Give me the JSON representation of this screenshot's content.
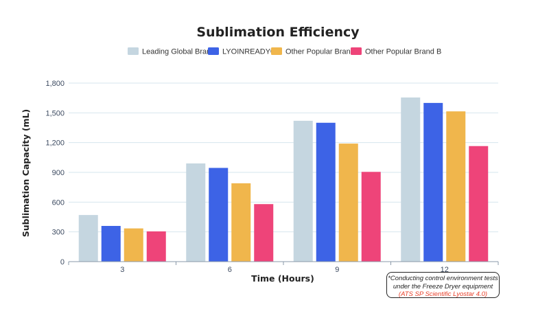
{
  "chart_data": {
    "type": "bar",
    "title": "Sublimation Efficiency",
    "xlabel": "Time (Hours)",
    "ylabel": "Sublimation Capacity (mL)",
    "categories": [
      "3",
      "6",
      "9",
      "12"
    ],
    "ylim": [
      0,
      1800
    ],
    "yticks": [
      "0",
      "300",
      "600",
      "900",
      "1,200",
      "1,500",
      "1,800"
    ],
    "ytick_values": [
      0,
      300,
      600,
      900,
      1200,
      1500,
      1800
    ],
    "grid": true,
    "legend_position": "top",
    "series": [
      {
        "name": "Leading Global Brand",
        "color": "#c5d6e0",
        "values": [
          470,
          990,
          1420,
          1655
        ]
      },
      {
        "name": "LYOINREADY®",
        "color": "#3d63e6",
        "values": [
          360,
          945,
          1400,
          1600
        ]
      },
      {
        "name": "Other Popular Brand A",
        "color": "#f0b64c",
        "values": [
          335,
          790,
          1190,
          1515
        ]
      },
      {
        "name": "Other Popular Brand B",
        "color": "#ee4479",
        "values": [
          305,
          580,
          905,
          1165
        ]
      }
    ]
  },
  "note": {
    "line1": "*Conducting control environment tests",
    "line2": "under the Freeze Dryer equipment",
    "line3": "(ATS SP Scientific Lyostar 4.0)"
  }
}
